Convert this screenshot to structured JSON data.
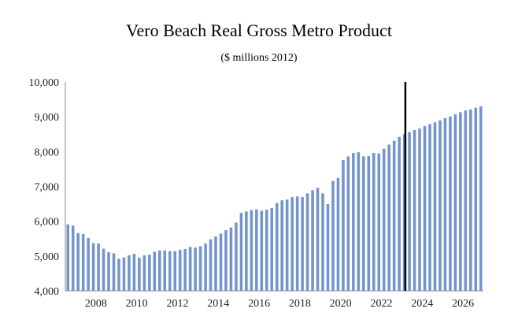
{
  "chart_data": {
    "type": "bar",
    "title": "Vero Beach Real Gross Metro Product",
    "subtitle": "($ millions 2012)",
    "xlabel": "",
    "ylabel": "",
    "ylim": [
      4000,
      10000
    ],
    "yticks": [
      4000,
      5000,
      6000,
      7000,
      8000,
      9000,
      10000
    ],
    "ytick_labels": [
      "4,000",
      "5,000",
      "6,000",
      "7,000",
      "8,000",
      "9,000",
      "10,000"
    ],
    "xtick_labels": [
      "2008",
      "2010",
      "2012",
      "2014",
      "2016",
      "2018",
      "2020",
      "2022",
      "2024",
      "2026"
    ],
    "x_start_quarter": "2007Q1",
    "bar_color": "#7494cc",
    "marker_line": {
      "after_quarter": "2023Q3",
      "color": "#000000"
    },
    "grid": false,
    "values": [
      5910,
      5870,
      5660,
      5630,
      5520,
      5370,
      5360,
      5210,
      5110,
      5080,
      4920,
      4960,
      5020,
      5060,
      4950,
      5020,
      5040,
      5120,
      5160,
      5160,
      5140,
      5140,
      5180,
      5200,
      5260,
      5240,
      5280,
      5360,
      5480,
      5560,
      5640,
      5740,
      5820,
      5960,
      6240,
      6280,
      6320,
      6340,
      6300,
      6330,
      6380,
      6520,
      6600,
      6620,
      6690,
      6710,
      6690,
      6800,
      6890,
      6960,
      6800,
      6490,
      7160,
      7240,
      7760,
      7860,
      7960,
      7980,
      7860,
      7870,
      7960,
      7950,
      8080,
      8200,
      8310,
      8420,
      8500,
      8560,
      8620,
      8660,
      8730,
      8790,
      8840,
      8900,
      8960,
      9010,
      9070,
      9130,
      9180,
      9210,
      9260,
      9300
    ]
  }
}
